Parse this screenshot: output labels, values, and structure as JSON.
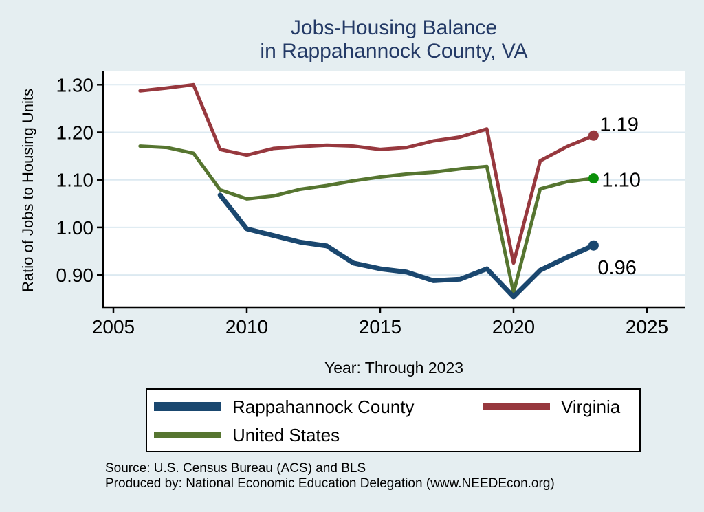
{
  "title": {
    "line1": "Jobs-Housing Balance",
    "line2": "in Rappahannock County, VA"
  },
  "axis": {
    "y_label": "Ratio of Jobs to Housing Units",
    "x_caption": "Year: Through 2023"
  },
  "chart_data": {
    "type": "line",
    "title": "Jobs-Housing Balance in Rappahannock County, VA",
    "xlabel": "Year: Through 2023",
    "ylabel": "Ratio of Jobs to Housing Units",
    "x_range": [
      2004.6,
      2026.4
    ],
    "y_range": [
      0.83,
      1.33
    ],
    "grid": "horizontal",
    "legend_position": "bottom",
    "x_ticks": [
      {
        "value": 2005,
        "label": "2005"
      },
      {
        "value": 2010,
        "label": "2010"
      },
      {
        "value": 2015,
        "label": "2015"
      },
      {
        "value": 2020,
        "label": "2020"
      },
      {
        "value": 2025,
        "label": "2025"
      }
    ],
    "y_ticks": [
      {
        "value": 0.9,
        "label": "0.90"
      },
      {
        "value": 1.0,
        "label": "1.00"
      },
      {
        "value": 1.1,
        "label": "1.10"
      },
      {
        "value": 1.2,
        "label": "1.20"
      },
      {
        "value": 1.3,
        "label": "1.30"
      }
    ],
    "series": [
      {
        "name": "Virginia",
        "color": "#97383e",
        "line_width": 5,
        "marker_color": "#97383e",
        "end_label": "1.19",
        "end_label_offset": [
          9,
          -7
        ],
        "x": [
          2006,
          2007,
          2008,
          2009,
          2010,
          2011,
          2012,
          2013,
          2014,
          2015,
          2016,
          2017,
          2018,
          2019,
          2020,
          2021,
          2022,
          2023
        ],
        "values": [
          1.287,
          1.293,
          1.3,
          1.164,
          1.152,
          1.166,
          1.17,
          1.173,
          1.171,
          1.164,
          1.168,
          1.182,
          1.19,
          1.207,
          0.925,
          1.14,
          1.17,
          1.193
        ]
      },
      {
        "name": "United States",
        "color": "#567530",
        "line_width": 5,
        "marker_color": "#0a9009",
        "end_label": "1.10",
        "end_label_offset": [
          12,
          12
        ],
        "x": [
          2006,
          2007,
          2008,
          2009,
          2010,
          2011,
          2012,
          2013,
          2014,
          2015,
          2016,
          2017,
          2018,
          2019,
          2020,
          2021,
          2022,
          2023
        ],
        "values": [
          1.171,
          1.168,
          1.156,
          1.079,
          1.06,
          1.066,
          1.08,
          1.088,
          1.098,
          1.106,
          1.112,
          1.116,
          1.123,
          1.128,
          0.863,
          1.081,
          1.096,
          1.103
        ]
      },
      {
        "name": "Rappahannock County",
        "color": "#1a476f",
        "line_width": 7,
        "marker_color": "#1a476f",
        "end_label": "0.96",
        "end_label_offset": [
          6,
          42
        ],
        "x": [
          2009,
          2010,
          2011,
          2012,
          2013,
          2014,
          2015,
          2016,
          2017,
          2018,
          2019,
          2020,
          2021,
          2022,
          2023
        ],
        "values": [
          1.068,
          0.997,
          0.983,
          0.969,
          0.961,
          0.925,
          0.913,
          0.906,
          0.888,
          0.891,
          0.913,
          0.854,
          0.91,
          0.937,
          0.962
        ]
      }
    ]
  },
  "legend": {
    "items": [
      {
        "label": "Rappahannock County",
        "color": "#1a476f"
      },
      {
        "label": "Virginia",
        "color": "#97383e"
      },
      {
        "label": "United States",
        "color": "#567530"
      }
    ]
  },
  "footer": {
    "line1": "Source: U.S. Census Bureau (ACS) and BLS",
    "line2": "Produced by: National Economic Education Delegation (www.NEEDEcon.org)"
  },
  "colors": {
    "background": "#e5eef1",
    "plot_background": "#ffffff",
    "title_text": "#243a66",
    "grid_line": "#dce9f1",
    "axis_line": "#000000"
  }
}
